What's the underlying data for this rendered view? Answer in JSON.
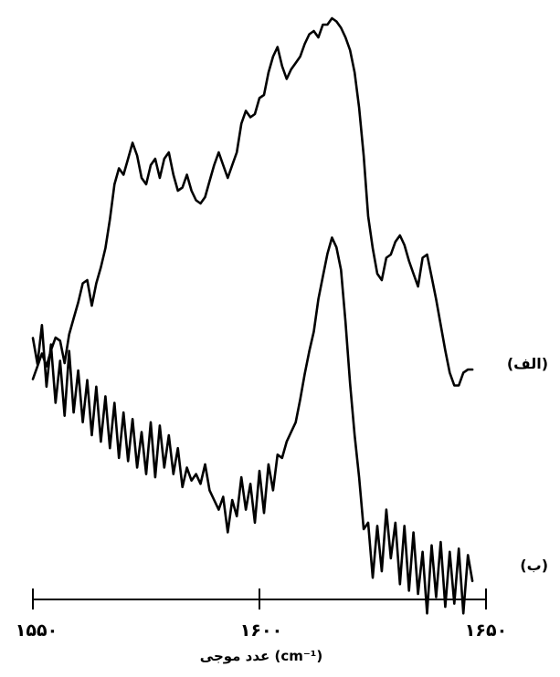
{
  "chart_data": {
    "type": "line",
    "title": "",
    "xlabel": "عدد موجی (cm⁻¹)",
    "ylabel": "",
    "xlim": [
      1550,
      1650
    ],
    "x_ticks": [
      1550,
      1600,
      1650
    ],
    "x_tick_labels": [
      "۱۵۵۰",
      "۱۶۰۰",
      "۱۶۵۰"
    ],
    "grid": false,
    "y_axis_shown": false,
    "series": [
      {
        "name": "(الف)",
        "x": [
          1550,
          1551,
          1552,
          1553,
          1554,
          1555,
          1556,
          1557,
          1558,
          1559,
          1560,
          1561,
          1562,
          1563,
          1564,
          1565,
          1566,
          1567,
          1568,
          1569,
          1570,
          1571,
          1572,
          1573,
          1574,
          1575,
          1576,
          1577,
          1578,
          1579,
          1580,
          1581,
          1582,
          1583,
          1584,
          1585,
          1586,
          1587,
          1588,
          1589,
          1590,
          1591,
          1592,
          1593,
          1594,
          1595,
          1596,
          1597,
          1598,
          1599,
          1600,
          1601,
          1602,
          1603,
          1604,
          1605,
          1606,
          1607,
          1608,
          1609,
          1610,
          1611,
          1612,
          1613,
          1614,
          1615,
          1616,
          1617,
          1618,
          1619,
          1620,
          1621,
          1622,
          1623,
          1624,
          1625,
          1626,
          1627,
          1628,
          1629,
          1630,
          1631,
          1632,
          1633,
          1634,
          1635,
          1636,
          1637,
          1638,
          1639,
          1640,
          1641,
          1642,
          1643,
          1644,
          1645,
          1646,
          1647
        ],
        "y": [
          0.05,
          0.09,
          0.13,
          0.09,
          0.14,
          0.18,
          0.17,
          0.1,
          0.19,
          0.24,
          0.29,
          0.35,
          0.36,
          0.28,
          0.35,
          0.4,
          0.46,
          0.55,
          0.66,
          0.71,
          0.69,
          0.74,
          0.79,
          0.75,
          0.68,
          0.66,
          0.72,
          0.74,
          0.68,
          0.74,
          0.76,
          0.69,
          0.64,
          0.65,
          0.69,
          0.64,
          0.61,
          0.6,
          0.62,
          0.67,
          0.72,
          0.76,
          0.72,
          0.68,
          0.72,
          0.76,
          0.85,
          0.89,
          0.87,
          0.88,
          0.93,
          0.94,
          1.01,
          1.06,
          1.09,
          1.03,
          0.99,
          1.02,
          1.04,
          1.06,
          1.1,
          1.13,
          1.14,
          1.12,
          1.16,
          1.16,
          1.18,
          1.17,
          1.15,
          1.12,
          1.08,
          1.01,
          0.9,
          0.75,
          0.56,
          0.46,
          0.38,
          0.36,
          0.43,
          0.44,
          0.48,
          0.5,
          0.47,
          0.42,
          0.38,
          0.34,
          0.43,
          0.44,
          0.37,
          0.3,
          0.22,
          0.14,
          0.07,
          0.03,
          0.03,
          0.07,
          0.08,
          0.08
        ]
      },
      {
        "name": "(ب)",
        "x": [
          1550,
          1551,
          1552,
          1553,
          1554,
          1555,
          1556,
          1557,
          1558,
          1559,
          1560,
          1561,
          1562,
          1563,
          1564,
          1565,
          1566,
          1567,
          1568,
          1569,
          1570,
          1571,
          1572,
          1573,
          1574,
          1575,
          1576,
          1577,
          1578,
          1579,
          1580,
          1581,
          1582,
          1583,
          1584,
          1585,
          1586,
          1587,
          1588,
          1589,
          1590,
          1591,
          1592,
          1593,
          1594,
          1595,
          1596,
          1597,
          1598,
          1599,
          1600,
          1601,
          1602,
          1603,
          1604,
          1605,
          1606,
          1607,
          1608,
          1609,
          1610,
          1611,
          1612,
          1613,
          1614,
          1615,
          1616,
          1617,
          1618,
          1619,
          1620,
          1621,
          1622,
          1623,
          1624,
          1625,
          1626,
          1627,
          1628,
          1629,
          1630,
          1631,
          1632,
          1633,
          1634,
          1635,
          1636,
          1637,
          1638,
          1639,
          1640,
          1641,
          1642,
          1643,
          1644,
          1645,
          1646,
          1647
        ],
        "y": [
          0.7,
          0.62,
          0.74,
          0.55,
          0.68,
          0.5,
          0.63,
          0.46,
          0.66,
          0.47,
          0.6,
          0.44,
          0.57,
          0.4,
          0.55,
          0.38,
          0.52,
          0.36,
          0.5,
          0.33,
          0.47,
          0.32,
          0.45,
          0.3,
          0.41,
          0.28,
          0.44,
          0.27,
          0.43,
          0.3,
          0.4,
          0.28,
          0.36,
          0.24,
          0.3,
          0.26,
          0.28,
          0.25,
          0.31,
          0.23,
          0.2,
          0.17,
          0.21,
          0.1,
          0.2,
          0.15,
          0.27,
          0.17,
          0.25,
          0.13,
          0.29,
          0.16,
          0.31,
          0.23,
          0.34,
          0.33,
          0.38,
          0.41,
          0.44,
          0.51,
          0.59,
          0.66,
          0.72,
          0.82,
          0.89,
          0.96,
          1.01,
          0.98,
          0.91,
          0.75,
          0.56,
          0.4,
          0.27,
          0.11,
          0.13,
          -0.04,
          0.12,
          -0.02,
          0.17,
          0.02,
          0.13,
          -0.06,
          0.12,
          -0.08,
          0.1,
          -0.09,
          0.04,
          -0.15,
          0.06,
          -0.1,
          0.07,
          -0.13,
          0.04,
          -0.12,
          0.05,
          -0.15,
          0.03,
          -0.05
        ]
      }
    ]
  },
  "labels": {
    "series_a": "(الف)",
    "series_b": "(ب)",
    "x_tick_1550": "۱۵۵۰",
    "x_tick_1600": "۱۶۰۰",
    "x_tick_1650": "۱۶۵۰",
    "x_axis_title": "عدد موجی (cm⁻¹)"
  }
}
